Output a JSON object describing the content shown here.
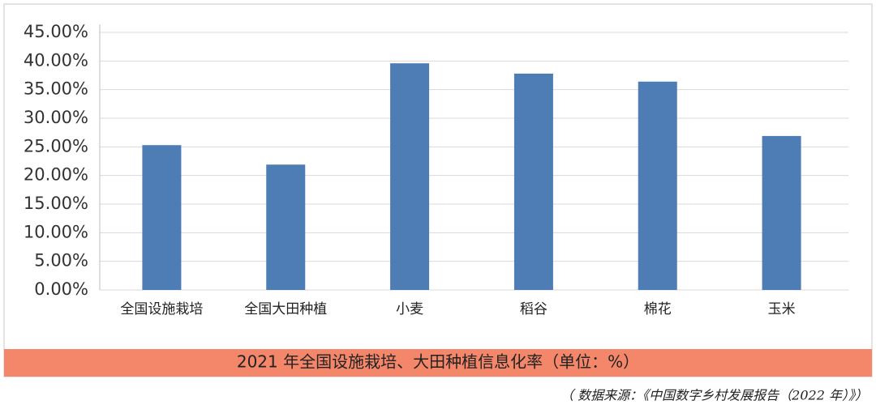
{
  "chart_data": {
    "type": "bar",
    "title": "2021 年全国设施栽培、大田种植信息化率（单位：%）",
    "source": "（ 数据来源：《中国数字乡村发展报告（2022 年）》）",
    "categories": [
      "全国设施栽培",
      "全国大田种植",
      "小麦",
      "稻谷",
      "棉花",
      "玉米"
    ],
    "values": [
      25.3,
      21.9,
      39.6,
      37.8,
      36.4,
      26.9
    ],
    "color": "#4e7db5",
    "ylim": [
      0,
      45
    ],
    "yticks": [
      {
        "value": 0,
        "label": "0.00%"
      },
      {
        "value": 5,
        "label": "5.00%"
      },
      {
        "value": 10,
        "label": "10.00%"
      },
      {
        "value": 15,
        "label": "15.00%"
      },
      {
        "value": 20,
        "label": "20.00%"
      },
      {
        "value": 25,
        "label": "25.00%"
      },
      {
        "value": 30,
        "label": "30.00%"
      },
      {
        "value": 35,
        "label": "35.00%"
      },
      {
        "value": 40,
        "label": "40.00%"
      },
      {
        "value": 45,
        "label": "45.00%"
      }
    ],
    "grid": true
  }
}
